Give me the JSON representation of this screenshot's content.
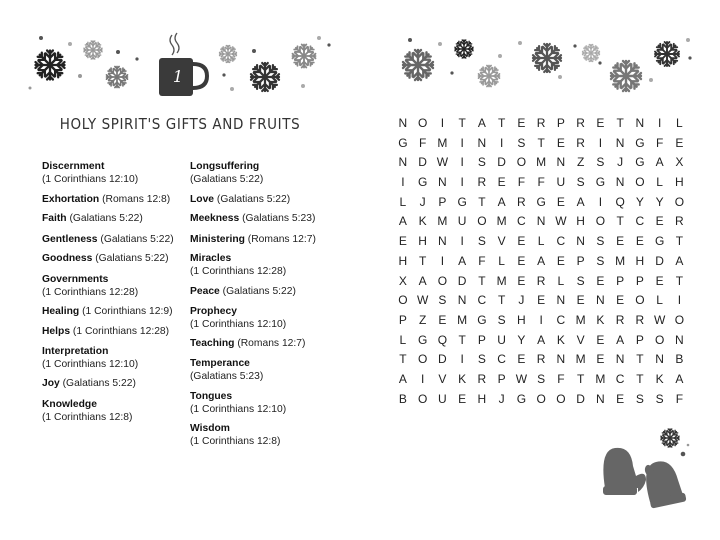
{
  "puzzle": {
    "number": "1",
    "title": "HOLY SPIRIT'S GIFTS AND FRUITS"
  },
  "words_left": [
    {
      "word": "Discernment",
      "ref": "(1 Corinthians 12:10)"
    },
    {
      "word": "Exhortation",
      "ref": "(Romans 12:8)"
    },
    {
      "word": "Faith",
      "ref": "(Galatians 5:22)"
    },
    {
      "word": "Gentleness",
      "ref": "(Galatians 5:22)"
    },
    {
      "word": "Goodness",
      "ref": "(Galatians 5:22)"
    },
    {
      "word": "Governments",
      "ref": "(1 Corinthians 12:28)"
    },
    {
      "word": "Healing",
      "ref": "(1 Corinthians 12:9)"
    },
    {
      "word": "Helps",
      "ref": "(1 Corinthians 12:28)"
    },
    {
      "word": "Interpretation",
      "ref": "(1 Corinthians 12:10)"
    },
    {
      "word": "Joy",
      "ref": "(Galatians 5:22)"
    },
    {
      "word": "Knowledge",
      "ref": "(1 Corinthians 12:8)"
    }
  ],
  "words_right": [
    {
      "word": "Longsuffering",
      "ref": "(Galatians 5:22)"
    },
    {
      "word": "Love",
      "ref": "(Galatians 5:22)"
    },
    {
      "word": "Meekness",
      "ref": "(Galatians 5:23)"
    },
    {
      "word": "Ministering",
      "ref": "(Romans 12:7)"
    },
    {
      "word": "Miracles",
      "ref": "(1 Corinthians 12:28)"
    },
    {
      "word": "Peace",
      "ref": "(Galatians 5:22)"
    },
    {
      "word": "Prophecy",
      "ref": "(1 Corinthians 12:10)"
    },
    {
      "word": "Teaching",
      "ref": "(Romans 12:7)"
    },
    {
      "word": "Temperance",
      "ref": "(Galatians 5:23)"
    },
    {
      "word": "Tongues",
      "ref": "(1 Corinthians 12:10)"
    },
    {
      "word": "Wisdom",
      "ref": "(1 Corinthians 12:8)"
    }
  ],
  "grid": [
    "NOITATERPRETNIL",
    "GFMINISTERINGFE",
    "NDWISDOMNZSJGAX",
    "IGNIREFFUSGNOLH",
    "LJPGTARGEAIQYYO",
    "AKMUOMCNWHOTCER",
    "EHNISVELCNSEEGT",
    "HTIAFLEAEPSMHDA",
    "XAODTMERLSEPPET",
    "OWSNCTJENENEOLI",
    "PZEMGSHICMKRRWO",
    "LGQTPUYAKVEAPON",
    "TODISCERNMENTNB",
    "AIVKRPWSFTMCTKA",
    "BOUEHJGOODNESSF"
  ],
  "colors": {
    "ink": "#222222",
    "mug": "#3a3a3a",
    "mitten": "#666666",
    "snow_light": "#9a9a9a"
  }
}
